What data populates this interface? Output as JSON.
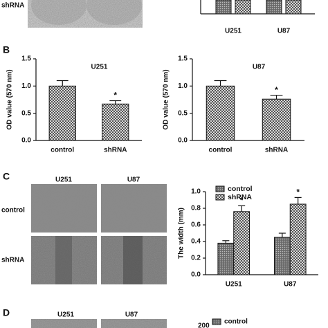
{
  "panel_a": {
    "image_row_label": "shRNA",
    "chart_categories": [
      "U251",
      "U87"
    ]
  },
  "panel_labels": [
    "B",
    "C",
    "D"
  ],
  "panel_c_images": {
    "columns": [
      "U251",
      "U87"
    ],
    "rows": [
      "control",
      "shRNA"
    ]
  },
  "panel_d": {
    "columns": [
      "U251",
      "U87"
    ],
    "legend": "control",
    "ytick": "200"
  },
  "chart_data": [
    {
      "type": "bar",
      "title": "U251",
      "y_label": "OD value (570 nm)",
      "categories": [
        "control",
        "shRNA"
      ],
      "values": [
        1.0,
        0.67
      ],
      "errors": [
        0.1,
        0.06
      ],
      "value_annotations": [
        null,
        "*"
      ],
      "pattern": "checker",
      "ylim": [
        0,
        1.5
      ],
      "yticks": [
        {
          "value": 0,
          "label": "0.0"
        },
        {
          "value": 0.5,
          "label": "0.5"
        },
        {
          "value": 1,
          "label": "1.0"
        },
        {
          "value": 1.5,
          "label": "1.5"
        }
      ]
    },
    {
      "type": "bar",
      "title": "U87",
      "y_label": "OD value (570 nm)",
      "categories": [
        "control",
        "shRNA"
      ],
      "values": [
        1.0,
        0.76
      ],
      "errors": [
        0.1,
        0.07
      ],
      "value_annotations": [
        null,
        "*"
      ],
      "pattern": "checker",
      "ylim": [
        0,
        1.5
      ],
      "yticks": [
        {
          "value": 0,
          "label": "0.0"
        },
        {
          "value": 0.5,
          "label": "0.5"
        },
        {
          "value": 1,
          "label": "1.0"
        },
        {
          "value": 1.5,
          "label": "1.5"
        }
      ]
    },
    {
      "type": "bar",
      "y_label": "The width (mm)",
      "categories": [
        "U251",
        "U87"
      ],
      "legend": "top-left",
      "series": [
        {
          "name": "control",
          "pattern": "dense",
          "values": [
            0.38,
            0.45
          ],
          "errors": [
            0.03,
            0.05
          ]
        },
        {
          "name": "shRNA",
          "pattern": "checker",
          "values": [
            0.76,
            0.85
          ],
          "errors": [
            0.07,
            0.08
          ],
          "value_annotations": [
            "*",
            "*"
          ]
        }
      ],
      "ylim": [
        0,
        1.0
      ],
      "yticks": [
        {
          "value": 0,
          "label": "0.0"
        },
        {
          "value": 0.2,
          "label": "0.2"
        },
        {
          "value": 0.4,
          "label": "0.4"
        },
        {
          "value": 0.6,
          "label": "0.6"
        },
        {
          "value": 0.8,
          "label": "0.8"
        },
        {
          "value": 1.0,
          "label": "1.0"
        }
      ]
    }
  ]
}
